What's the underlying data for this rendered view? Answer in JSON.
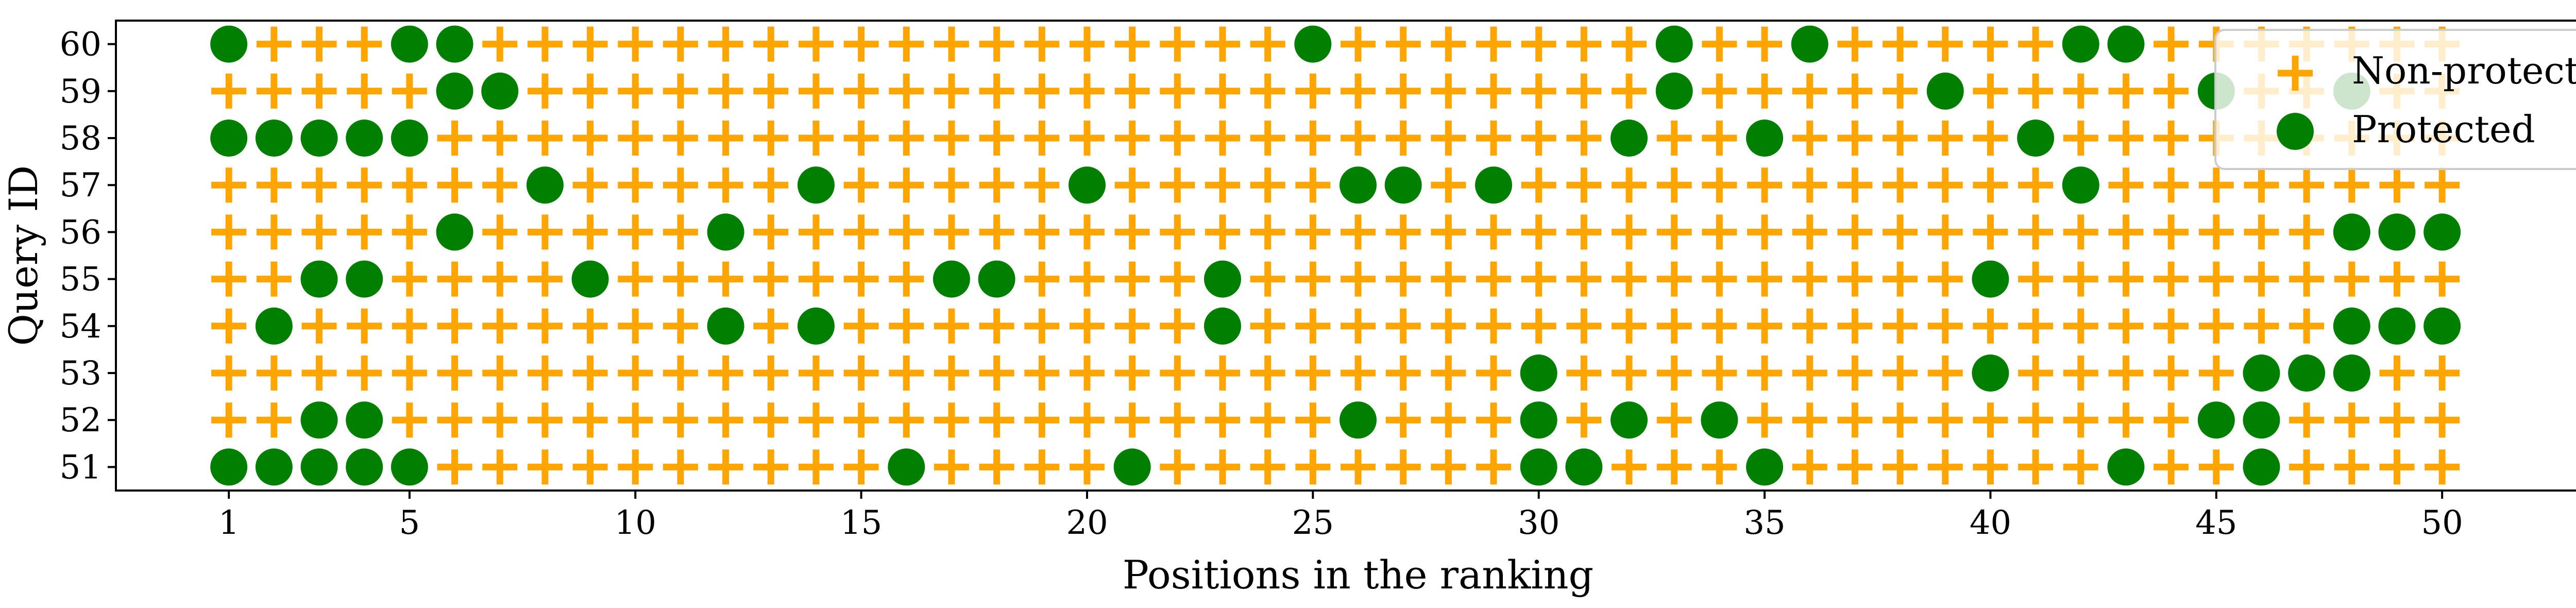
{
  "chart_data": {
    "type": "scatter",
    "title": "",
    "xlabel": "Positions in the ranking",
    "ylabel": "Query ID",
    "xlim": [
      -1.5,
      53.5
    ],
    "ylim": [
      50.5,
      60.5
    ],
    "x_ticks": [
      1,
      5,
      10,
      15,
      20,
      25,
      30,
      35,
      40,
      45,
      50
    ],
    "y_ticks": [
      51,
      52,
      53,
      54,
      55,
      56,
      57,
      58,
      59,
      60
    ],
    "positions": [
      1,
      2,
      3,
      4,
      5,
      6,
      7,
      8,
      9,
      10,
      11,
      12,
      13,
      14,
      15,
      16,
      17,
      18,
      19,
      20,
      21,
      22,
      23,
      24,
      25,
      26,
      27,
      28,
      29,
      30,
      31,
      32,
      33,
      34,
      35,
      36,
      37,
      38,
      39,
      40,
      41,
      42,
      43,
      44,
      45,
      46,
      47,
      48,
      49,
      50
    ],
    "queries": [
      51,
      52,
      53,
      54,
      55,
      56,
      57,
      58,
      59,
      60
    ],
    "legend": {
      "position": "upper right",
      "entries": [
        {
          "label": "Non-protected",
          "marker": "plus",
          "color": "#FFA500"
        },
        {
          "label": "Protected",
          "marker": "circle",
          "color": "#007F00"
        }
      ]
    },
    "series": [
      {
        "name": "Protected",
        "marker": "circle",
        "color": "#007F00",
        "protected_positions": {
          "51": [
            1,
            2,
            3,
            4,
            5,
            16,
            21,
            30,
            31,
            35,
            43,
            46
          ],
          "52": [
            3,
            4,
            26,
            30,
            32,
            34,
            45,
            46
          ],
          "53": [
            30,
            40,
            46,
            47,
            48
          ],
          "54": [
            2,
            12,
            14,
            23,
            48,
            49,
            50
          ],
          "55": [
            3,
            4,
            9,
            17,
            18,
            23,
            40
          ],
          "56": [
            6,
            12,
            48,
            49,
            50
          ],
          "57": [
            8,
            14,
            20,
            26,
            27,
            29,
            42
          ],
          "58": [
            1,
            2,
            3,
            4,
            5,
            32,
            35,
            41
          ],
          "59": [
            6,
            7,
            33,
            39,
            45,
            48
          ],
          "60": [
            1,
            5,
            6,
            25,
            33,
            36,
            42,
            43
          ]
        }
      },
      {
        "name": "Non-protected",
        "marker": "plus",
        "color": "#FFA500",
        "description": "all remaining positions 1-50 in each query"
      }
    ]
  }
}
